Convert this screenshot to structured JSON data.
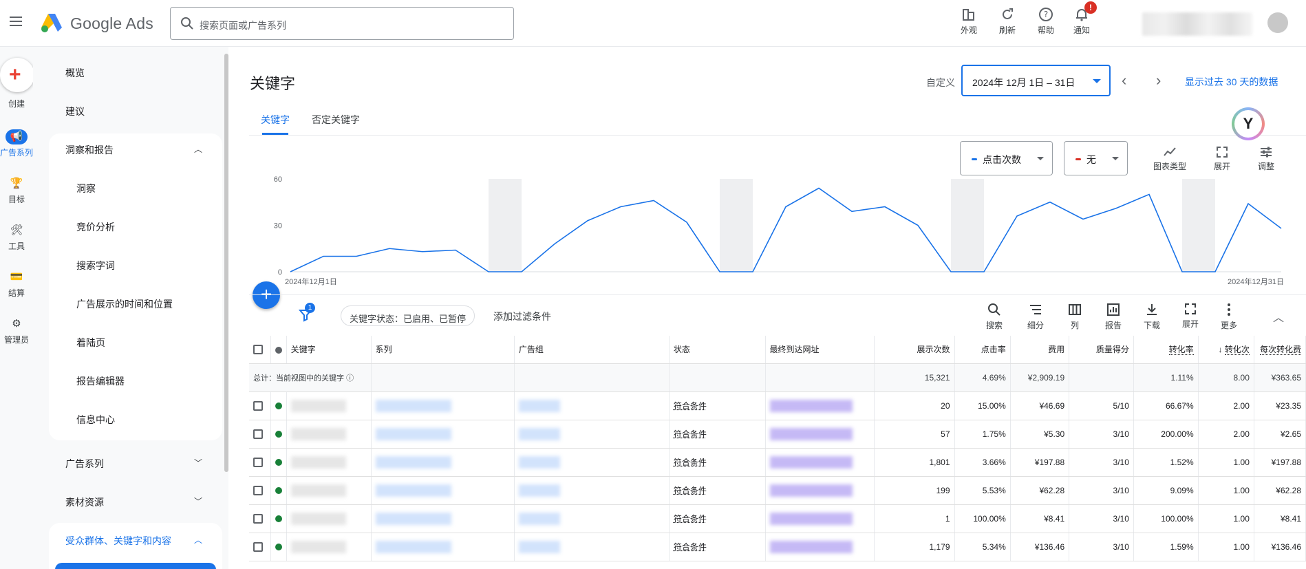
{
  "app": {
    "brand": "Google Ads",
    "search_placeholder": "搜索页面或广告系列"
  },
  "top_tools": [
    {
      "label": "外观",
      "icon": "appearance-icon"
    },
    {
      "label": "刷新",
      "icon": "refresh-icon"
    },
    {
      "label": "帮助",
      "icon": "help-icon"
    },
    {
      "label": "通知",
      "icon": "bell-icon",
      "badge": "!"
    }
  ],
  "rail": [
    {
      "label": "创建",
      "icon": "plus-icon"
    },
    {
      "label": "广告系列",
      "icon": "megaphone-icon",
      "active": true
    },
    {
      "label": "目标",
      "icon": "trophy-icon"
    },
    {
      "label": "工具",
      "icon": "tools-icon"
    },
    {
      "label": "结算",
      "icon": "card-icon"
    },
    {
      "label": "管理员",
      "icon": "gear-icon"
    }
  ],
  "nav": {
    "overview": "概览",
    "recommendations": "建议",
    "insights_reports": "洞察和报告",
    "insights_sub": [
      "洞察",
      "竞价分析",
      "搜索字词",
      "广告展示的时间和位置",
      "着陆页",
      "报告编辑器",
      "信息中心"
    ],
    "campaigns": "广告系列",
    "assets": "素材资源",
    "audiences": "受众群体、关键字和内容"
  },
  "page": {
    "title": "关键字",
    "date_label": "自定义",
    "date_range": "2024年 12月 1日 – 31日",
    "last30_link": "显示过去 30 天的数据"
  },
  "tabs": [
    "关键字",
    "否定关键字"
  ],
  "chart_controls": {
    "metric1": "点击次数",
    "metric1_color": "#1a73e8",
    "metric2": "无",
    "metric2_color": "#d93025",
    "tools": [
      "图表类型",
      "展开",
      "调整"
    ]
  },
  "chart_data": {
    "type": "line",
    "x": [
      "2024年12月1日",
      "2",
      "3",
      "4",
      "5",
      "6",
      "7",
      "8",
      "9",
      "10",
      "11",
      "12",
      "13",
      "14",
      "15",
      "16",
      "17",
      "18",
      "19",
      "20",
      "21",
      "22",
      "23",
      "24",
      "25",
      "26",
      "27",
      "28",
      "29",
      "30",
      "2024年12月31日"
    ],
    "values": [
      0,
      10,
      10,
      15,
      13,
      14,
      0,
      0,
      18,
      33,
      42,
      46,
      32,
      0,
      0,
      42,
      54,
      39,
      42,
      30,
      0,
      0,
      36,
      45,
      34,
      41,
      50,
      0,
      0,
      44,
      28
    ],
    "weekend_bands": [
      [
        6,
        7
      ],
      [
        13,
        14
      ],
      [
        20,
        21
      ],
      [
        27,
        28
      ]
    ],
    "ylim": [
      0,
      60
    ],
    "yticks": [
      0,
      30,
      60
    ],
    "xtick_start": "2024年12月1日",
    "xtick_end": "2024年12月31日",
    "series_color": "#1a73e8",
    "grid": false
  },
  "filterbar": {
    "filter_count": "1",
    "chip": "关键字状态：已启用、已暂停",
    "add_filter": "添加过滤条件",
    "tools": [
      "搜索",
      "细分",
      "列",
      "报告",
      "下载",
      "展开",
      "更多"
    ]
  },
  "table": {
    "headers": [
      "关键字",
      "系列",
      "广告组",
      "状态",
      "最终到达网址",
      "展示次数",
      "点击率",
      "费用",
      "质量得分",
      "转化率",
      "转化次",
      "每次转化费"
    ],
    "total_label": "总计：当前视图中的关键字",
    "total": [
      "15,321",
      "4.69%",
      "¥2,909.19",
      "",
      "1.11%",
      "8.00",
      "¥363.65"
    ],
    "rows": [
      {
        "status": "符合条件",
        "impr": "20",
        "ctr": "15.00%",
        "cost": "¥46.69",
        "qs": "5/10",
        "cr": "66.67%",
        "conv": "2.00",
        "cpa": "¥23.35"
      },
      {
        "status": "符合条件",
        "impr": "57",
        "ctr": "1.75%",
        "cost": "¥5.30",
        "qs": "3/10",
        "cr": "200.00%",
        "conv": "2.00",
        "cpa": "¥2.65"
      },
      {
        "status": "符合条件",
        "impr": "1,801",
        "ctr": "3.66%",
        "cost": "¥197.88",
        "qs": "3/10",
        "cr": "1.52%",
        "conv": "1.00",
        "cpa": "¥197.88"
      },
      {
        "status": "符合条件",
        "impr": "199",
        "ctr": "5.53%",
        "cost": "¥62.28",
        "qs": "3/10",
        "cr": "9.09%",
        "conv": "1.00",
        "cpa": "¥62.28"
      },
      {
        "status": "符合条件",
        "impr": "1",
        "ctr": "100.00%",
        "cost": "¥8.41",
        "qs": "3/10",
        "cr": "100.00%",
        "conv": "1.00",
        "cpa": "¥8.41"
      },
      {
        "status": "符合条件",
        "impr": "1,179",
        "ctr": "5.34%",
        "cost": "¥136.46",
        "qs": "3/10",
        "cr": "1.59%",
        "conv": "1.00",
        "cpa": "¥136.46"
      }
    ]
  }
}
